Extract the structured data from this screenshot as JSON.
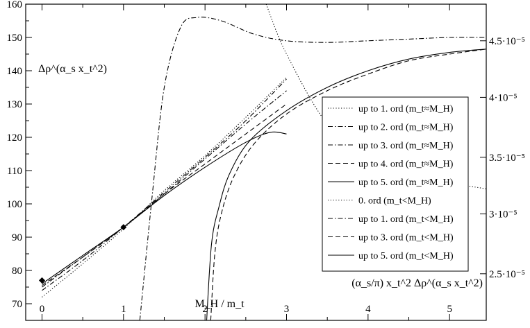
{
  "chart_data": {
    "type": "line",
    "title": "",
    "xlabel": "M_H / m_t",
    "ylabel_left": "Δρ^(α_s x_t^2)",
    "ylabel_right": "(α_s/π) x_t^2 Δρ^(α_s x_t^2)",
    "xlim": [
      -0.2,
      5.45
    ],
    "ylim": [
      65,
      160
    ],
    "x_ticks": [
      "0",
      "1",
      "2",
      "3",
      "4",
      "5"
    ],
    "y_ticks": [
      "70",
      "80",
      "90",
      "100",
      "110",
      "120",
      "130",
      "140",
      "150",
      "160"
    ],
    "right_ticks": [
      {
        "label": "2.5·10⁻⁵",
        "y": 79
      },
      {
        "label": "3·10⁻⁵",
        "y": 97
      },
      {
        "label": "3.5·10⁻⁵",
        "y": 114
      },
      {
        "label": "4·10⁻⁵",
        "y": 132
      },
      {
        "label": "4.5·10⁻⁵",
        "y": 149
      }
    ],
    "grid": false,
    "legend_position": "right",
    "markers": [
      {
        "x": 0,
        "y": 77
      },
      {
        "x": 1,
        "y": 93
      }
    ],
    "series": [
      {
        "name": "up to 1. ord (m_t≈M_H)",
        "style": "dotted",
        "x": [
          0,
          0.5,
          1,
          1.5,
          2,
          2.5,
          3
        ],
        "y": [
          72,
          82,
          92.5,
          104,
          114.5,
          126,
          138
        ]
      },
      {
        "name": "up to 2. ord (m_t≈M_H)",
        "style": "dashdot",
        "x": [
          0,
          0.5,
          1,
          1.5,
          2,
          2.5,
          3
        ],
        "y": [
          74,
          83,
          93,
          103.5,
          114,
          125,
          137.5
        ]
      },
      {
        "name": "up to 3. ord (m_t≈M_H)",
        "style": "dashdot",
        "x": [
          0,
          0.5,
          1,
          1.5,
          2,
          2.5,
          3
        ],
        "y": [
          75,
          84,
          93,
          103,
          113.5,
          124,
          134
        ]
      },
      {
        "name": "up to 4. ord (m_t≈M_H)",
        "style": "dashed",
        "x": [
          0,
          0.5,
          1,
          1.5,
          2,
          2.5,
          3
        ],
        "y": [
          75.5,
          84,
          93,
          103,
          112,
          121,
          130
        ]
      },
      {
        "name": "up to 5. ord (m_t≈M_H)",
        "style": "solid",
        "x": [
          0,
          0.5,
          1,
          1.5,
          2,
          2.5,
          2.8,
          3
        ],
        "y": [
          76,
          84.5,
          93,
          102.5,
          111,
          118.5,
          121.5,
          121
        ]
      },
      {
        "name": "0. ord (m_t<M_H)",
        "style": "dotted",
        "x": [
          2.75,
          3.0,
          3.5,
          4.0,
          4.5,
          5.0,
          5.45
        ],
        "y": [
          160,
          145,
          124,
          115,
          110,
          106.5,
          104.5
        ]
      },
      {
        "name": "up to 1. ord (m_t<M_H)",
        "style": "dashdot",
        "x": [
          1.2,
          1.35,
          1.5,
          1.7,
          1.9,
          2.2,
          2.6,
          3.0,
          3.5,
          4.0,
          4.5,
          5.0,
          5.45
        ],
        "y": [
          65,
          102,
          135,
          153,
          156,
          155,
          151,
          149,
          148.5,
          149,
          149.5,
          150,
          150
        ]
      },
      {
        "name": "up to 3. ord (m_t<M_H)",
        "style": "dashed",
        "x": [
          2.07,
          2.12,
          2.2,
          2.35,
          2.6,
          3.0,
          3.5,
          4.0,
          4.5,
          5.0,
          5.45
        ],
        "y": [
          65,
          85,
          97,
          108,
          118,
          127,
          134,
          139,
          143,
          145,
          146.5
        ]
      },
      {
        "name": "up to 5. ord (m_t<M_H)",
        "style": "solid",
        "x": [
          2.02,
          2.08,
          2.17,
          2.3,
          2.55,
          3.0,
          3.5,
          4.0,
          4.5,
          5.0,
          5.45
        ],
        "y": [
          65,
          88,
          99,
          109,
          119,
          128,
          135,
          140,
          143.5,
          145.5,
          146.5
        ]
      }
    ]
  }
}
